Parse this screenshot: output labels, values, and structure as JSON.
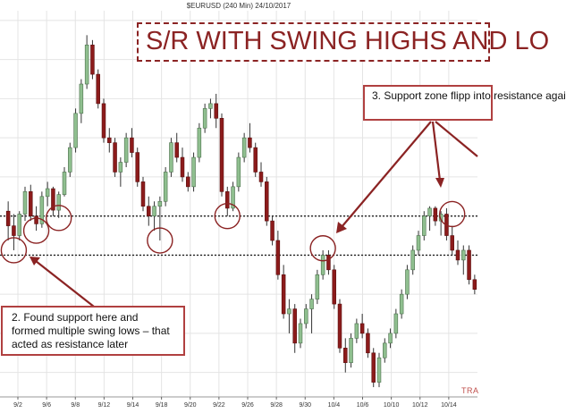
{
  "header": {
    "symbol_line": "$EURUSD (240 Min)  24/10/2017"
  },
  "headline": "S/R WITH SWING HIGHS AND LO",
  "annotations": {
    "found_support": "2. Found support here and formed multiple swing lows – that acted as resistance later",
    "support_flip": "3. Support zone flipp into resistance agai"
  },
  "watermark": "TRA",
  "colors": {
    "up_candle": "#8fbf8f",
    "down_candle": "#8c1b1b",
    "accent": "#8b2323"
  },
  "chart_data": {
    "type": "candlestick",
    "title": "$EURUSD (240 Min)  24/10/2017",
    "x_tick_labels": [
      "9/2",
      "9/6",
      "9/8",
      "9/12",
      "9/14",
      "9/18",
      "9/20",
      "9/22",
      "9/26",
      "9/28",
      "9/30",
      "10/4",
      "10/6",
      "10/10",
      "10/12",
      "10/14"
    ],
    "ylim": [
      -18.5,
      21
    ],
    "grid": true,
    "levels": [
      {
        "name": "upper support/resistance line",
        "value": 0,
        "style": "dotted"
      },
      {
        "name": "lower support/resistance line",
        "value": -4,
        "style": "dotted"
      }
    ],
    "swing_points": [
      {
        "x_index": 1,
        "y": -3.5
      },
      {
        "x_index": 5,
        "y": -1.5
      },
      {
        "x_index": 9,
        "y": -0.2
      },
      {
        "x_index": 27,
        "y": -2.5
      },
      {
        "x_index": 39,
        "y": 0
      },
      {
        "x_index": 56,
        "y": -3.3
      },
      {
        "x_index": 79,
        "y": 0.2
      }
    ],
    "candles": [
      {
        "o": 0.5,
        "h": 1.5,
        "l": -2.5,
        "c": -1.0
      },
      {
        "o": -1.0,
        "h": 0.2,
        "l": -3.5,
        "c": -2.0
      },
      {
        "o": -2.0,
        "h": 0.5,
        "l": -2.5,
        "c": 0.2
      },
      {
        "o": 0.2,
        "h": 3.0,
        "l": -0.5,
        "c": 2.5
      },
      {
        "o": 2.5,
        "h": 3.2,
        "l": -0.5,
        "c": 0.0
      },
      {
        "o": 0.0,
        "h": 1.0,
        "l": -1.5,
        "c": -0.8
      },
      {
        "o": -0.8,
        "h": 2.5,
        "l": -1.2,
        "c": 2.0
      },
      {
        "o": 2.0,
        "h": 3.5,
        "l": 1.0,
        "c": 2.8
      },
      {
        "o": 2.8,
        "h": 3.0,
        "l": 0.0,
        "c": 0.6
      },
      {
        "o": 0.6,
        "h": 2.5,
        "l": -0.2,
        "c": 2.2
      },
      {
        "o": 2.2,
        "h": 5.0,
        "l": 2.0,
        "c": 4.5
      },
      {
        "o": 4.5,
        "h": 7.5,
        "l": 4.0,
        "c": 7.0
      },
      {
        "o": 7.0,
        "h": 11.0,
        "l": 6.5,
        "c": 10.5
      },
      {
        "o": 10.5,
        "h": 14.0,
        "l": 9.5,
        "c": 13.5
      },
      {
        "o": 13.5,
        "h": 18.5,
        "l": 13.0,
        "c": 17.5
      },
      {
        "o": 17.5,
        "h": 18.0,
        "l": 14.0,
        "c": 14.5
      },
      {
        "o": 14.5,
        "h": 15.0,
        "l": 11.0,
        "c": 11.5
      },
      {
        "o": 11.5,
        "h": 12.0,
        "l": 7.5,
        "c": 8.0
      },
      {
        "o": 8.0,
        "h": 9.0,
        "l": 6.5,
        "c": 7.5
      },
      {
        "o": 7.5,
        "h": 8.0,
        "l": 4.0,
        "c": 4.5
      },
      {
        "o": 4.5,
        "h": 6.0,
        "l": 3.0,
        "c": 5.5
      },
      {
        "o": 5.5,
        "h": 8.5,
        "l": 5.0,
        "c": 8.0
      },
      {
        "o": 8.0,
        "h": 9.0,
        "l": 6.0,
        "c": 6.5
      },
      {
        "o": 6.5,
        "h": 7.0,
        "l": 3.0,
        "c": 3.5
      },
      {
        "o": 3.5,
        "h": 4.0,
        "l": 0.5,
        "c": 1.0
      },
      {
        "o": 1.0,
        "h": 2.0,
        "l": -1.0,
        "c": 0.0
      },
      {
        "o": 0.0,
        "h": 1.5,
        "l": -1.5,
        "c": 1.0
      },
      {
        "o": 1.0,
        "h": 2.0,
        "l": -2.5,
        "c": 1.5
      },
      {
        "o": 1.5,
        "h": 5.0,
        "l": 1.0,
        "c": 4.5
      },
      {
        "o": 4.5,
        "h": 8.0,
        "l": 4.0,
        "c": 7.5
      },
      {
        "o": 7.5,
        "h": 8.5,
        "l": 5.5,
        "c": 6.0
      },
      {
        "o": 6.0,
        "h": 7.0,
        "l": 3.5,
        "c": 4.0
      },
      {
        "o": 4.0,
        "h": 4.5,
        "l": 2.5,
        "c": 3.0
      },
      {
        "o": 3.0,
        "h": 6.5,
        "l": 2.5,
        "c": 6.0
      },
      {
        "o": 6.0,
        "h": 9.5,
        "l": 5.5,
        "c": 9.0
      },
      {
        "o": 9.0,
        "h": 11.5,
        "l": 8.5,
        "c": 11.0
      },
      {
        "o": 11.0,
        "h": 12.0,
        "l": 10.0,
        "c": 11.5
      },
      {
        "o": 11.5,
        "h": 12.5,
        "l": 9.0,
        "c": 10.0
      },
      {
        "o": 10.0,
        "h": 10.5,
        "l": 2.0,
        "c": 2.5
      },
      {
        "o": 2.5,
        "h": 3.0,
        "l": 0.0,
        "c": 0.8
      },
      {
        "o": 0.8,
        "h": 3.5,
        "l": 0.5,
        "c": 3.0
      },
      {
        "o": 3.0,
        "h": 6.5,
        "l": 2.5,
        "c": 6.0
      },
      {
        "o": 6.0,
        "h": 8.5,
        "l": 5.5,
        "c": 8.0
      },
      {
        "o": 8.0,
        "h": 9.5,
        "l": 6.5,
        "c": 7.0
      },
      {
        "o": 7.0,
        "h": 7.5,
        "l": 4.0,
        "c": 4.5
      },
      {
        "o": 4.5,
        "h": 5.5,
        "l": 3.0,
        "c": 3.5
      },
      {
        "o": 3.5,
        "h": 4.0,
        "l": -1.0,
        "c": -0.5
      },
      {
        "o": -0.5,
        "h": 0.0,
        "l": -3.0,
        "c": -2.5
      },
      {
        "o": -2.5,
        "h": -1.5,
        "l": -6.5,
        "c": -6.0
      },
      {
        "o": -6.0,
        "h": -5.0,
        "l": -10.5,
        "c": -10.0
      },
      {
        "o": -10.0,
        "h": -8.5,
        "l": -12.0,
        "c": -9.5
      },
      {
        "o": -9.5,
        "h": -9.0,
        "l": -14.0,
        "c": -13.0
      },
      {
        "o": -13.0,
        "h": -10.5,
        "l": -13.5,
        "c": -11.0
      },
      {
        "o": -11.0,
        "h": -9.0,
        "l": -11.5,
        "c": -9.5
      },
      {
        "o": -9.5,
        "h": -8.0,
        "l": -12.0,
        "c": -8.5
      },
      {
        "o": -8.5,
        "h": -5.5,
        "l": -9.0,
        "c": -6.0
      },
      {
        "o": -6.0,
        "h": -3.5,
        "l": -6.5,
        "c": -4.0
      },
      {
        "o": -4.0,
        "h": -3.5,
        "l": -6.0,
        "c": -5.5
      },
      {
        "o": -5.5,
        "h": -5.0,
        "l": -9.5,
        "c": -9.0
      },
      {
        "o": -9.0,
        "h": -8.5,
        "l": -14.0,
        "c": -13.5
      },
      {
        "o": -13.5,
        "h": -12.5,
        "l": -16.0,
        "c": -15.0
      },
      {
        "o": -15.0,
        "h": -12.0,
        "l": -15.5,
        "c": -12.5
      },
      {
        "o": -12.5,
        "h": -10.5,
        "l": -13.0,
        "c": -11.0
      },
      {
        "o": -11.0,
        "h": -10.0,
        "l": -12.5,
        "c": -12.0
      },
      {
        "o": -12.0,
        "h": -11.5,
        "l": -14.5,
        "c": -14.0
      },
      {
        "o": -14.0,
        "h": -13.5,
        "l": -17.5,
        "c": -17.0
      },
      {
        "o": -17.0,
        "h": -14.0,
        "l": -17.5,
        "c": -14.5
      },
      {
        "o": -14.5,
        "h": -12.5,
        "l": -15.0,
        "c": -13.0
      },
      {
        "o": -13.0,
        "h": -11.5,
        "l": -13.5,
        "c": -12.0
      },
      {
        "o": -12.0,
        "h": -9.5,
        "l": -12.5,
        "c": -10.0
      },
      {
        "o": -10.0,
        "h": -7.5,
        "l": -10.5,
        "c": -8.0
      },
      {
        "o": -8.0,
        "h": -5.0,
        "l": -8.5,
        "c": -5.5
      },
      {
        "o": -5.5,
        "h": -3.0,
        "l": -6.0,
        "c": -3.5
      },
      {
        "o": -3.5,
        "h": -1.5,
        "l": -4.0,
        "c": -2.0
      },
      {
        "o": -2.0,
        "h": 0.5,
        "l": -2.5,
        "c": 0.0
      },
      {
        "o": 0.0,
        "h": 1.0,
        "l": -1.5,
        "c": 0.8
      },
      {
        "o": 0.8,
        "h": 1.0,
        "l": -1.0,
        "c": -0.5
      },
      {
        "o": -0.5,
        "h": 0.5,
        "l": -2.0,
        "c": 0.2
      },
      {
        "o": 0.2,
        "h": 0.8,
        "l": -2.5,
        "c": -2.0
      },
      {
        "o": -2.0,
        "h": -1.0,
        "l": -4.0,
        "c": -3.5
      },
      {
        "o": -3.5,
        "h": -2.5,
        "l": -5.0,
        "c": -4.5
      },
      {
        "o": -4.5,
        "h": -3.0,
        "l": -6.0,
        "c": -3.5
      },
      {
        "o": -3.5,
        "h": -3.0,
        "l": -7.0,
        "c": -6.5
      },
      {
        "o": -6.5,
        "h": -6.0,
        "l": -8.0,
        "c": -7.5
      }
    ]
  }
}
